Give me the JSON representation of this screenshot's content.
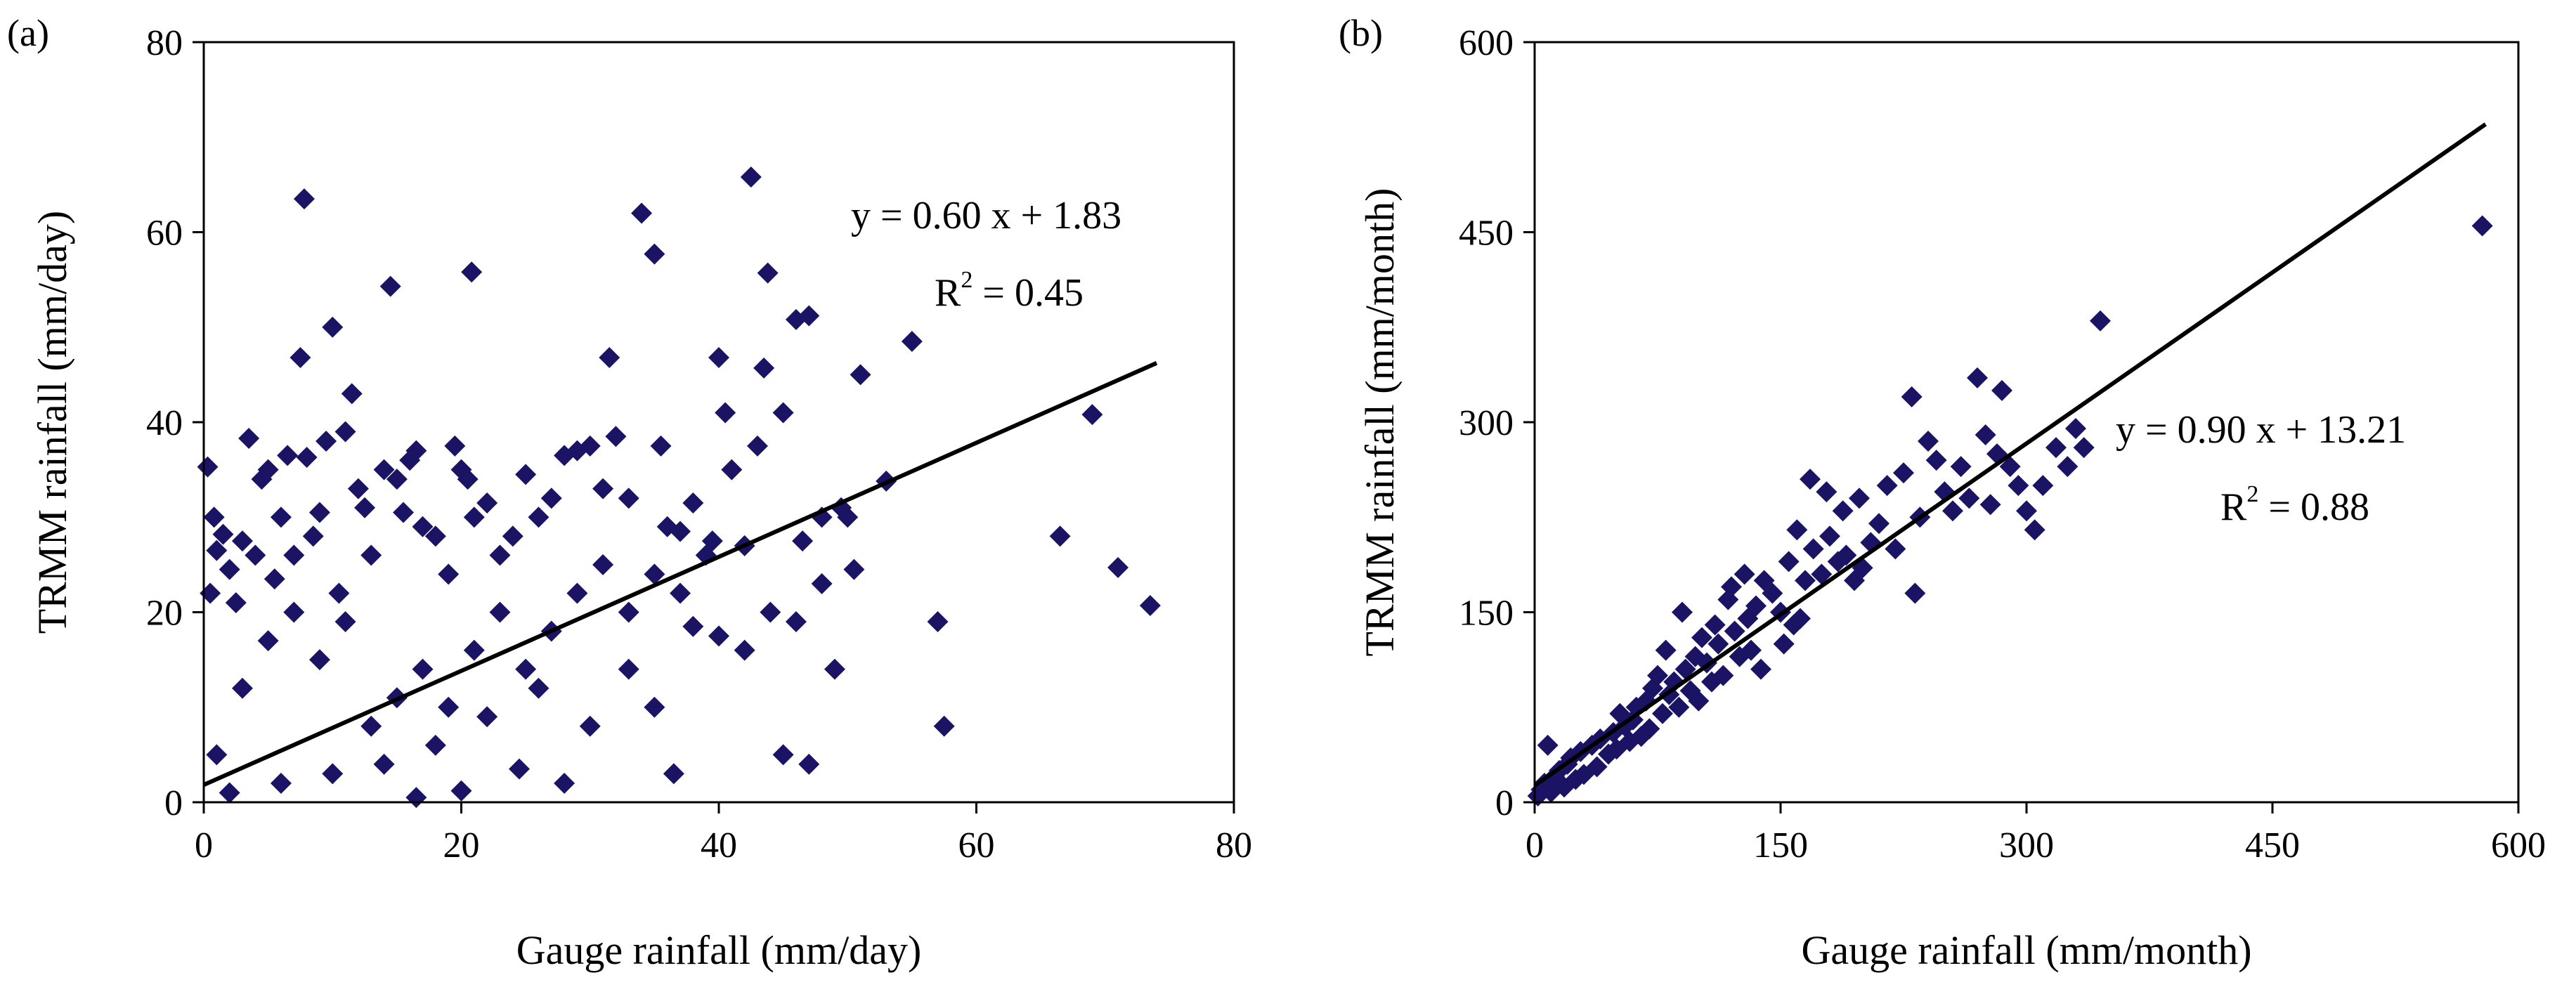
{
  "chart_data": [
    {
      "panel_label": "(a)",
      "type": "scatter",
      "xlabel": "Gauge rainfall (mm/day)",
      "ylabel": "TRMM rainfall (mm/day)",
      "xlim": [
        0,
        80
      ],
      "ylim": [
        0,
        80
      ],
      "xticks": [
        0,
        20,
        40,
        60,
        80
      ],
      "yticks": [
        0,
        20,
        40,
        60,
        80
      ],
      "grid": false,
      "marker": "diamond",
      "marker_color": "#1b1464",
      "line_color": "#000000",
      "fit": {
        "slope": 0.6,
        "intercept": 1.83,
        "x_range": [
          0,
          74
        ]
      },
      "equation_text": "y = 0.60 x + 1.83",
      "r2_text": {
        "prefix": "R",
        "sup": "2",
        "suffix": " = 0.45"
      },
      "points": [
        [
          0.3,
          35.3
        ],
        [
          0.5,
          22.0
        ],
        [
          0.8,
          30.0
        ],
        [
          1.0,
          26.5
        ],
        [
          1.5,
          28.2
        ],
        [
          2.0,
          24.5
        ],
        [
          2.5,
          21.0
        ],
        [
          3.0,
          27.5
        ],
        [
          3.5,
          38.3
        ],
        [
          4.0,
          26.0
        ],
        [
          4.5,
          34.0
        ],
        [
          5.0,
          35.0
        ],
        [
          5.5,
          23.5
        ],
        [
          6.0,
          30.0
        ],
        [
          6.5,
          36.5
        ],
        [
          7.0,
          26.0
        ],
        [
          7.5,
          46.8
        ],
        [
          7.8,
          63.5
        ],
        [
          8.0,
          36.3
        ],
        [
          8.5,
          28.0
        ],
        [
          9.0,
          30.5
        ],
        [
          9.5,
          38.0
        ],
        [
          10.0,
          50.0
        ],
        [
          10.5,
          22.0
        ],
        [
          11.0,
          39.0
        ],
        [
          11.5,
          43.0
        ],
        [
          12.0,
          33.0
        ],
        [
          12.5,
          31.0
        ],
        [
          13.0,
          26.0
        ],
        [
          14.0,
          35.0
        ],
        [
          14.5,
          54.3
        ],
        [
          15.0,
          34.0
        ],
        [
          15.5,
          30.5
        ],
        [
          16.0,
          36.0
        ],
        [
          16.5,
          37.0
        ],
        [
          17.0,
          29.0
        ],
        [
          18.0,
          28.0
        ],
        [
          19.0,
          24.0
        ],
        [
          19.5,
          37.5
        ],
        [
          20.0,
          35.0
        ],
        [
          20.5,
          34.0
        ],
        [
          20.8,
          55.8
        ],
        [
          21.0,
          30.0
        ],
        [
          22.0,
          31.5
        ],
        [
          23.0,
          26.0
        ],
        [
          24.0,
          28.0
        ],
        [
          25.0,
          34.5
        ],
        [
          26.0,
          30.0
        ],
        [
          27.0,
          32.0
        ],
        [
          28.0,
          36.5
        ],
        [
          29.0,
          37.0
        ],
        [
          30.0,
          37.5
        ],
        [
          31.0,
          33.0
        ],
        [
          31.5,
          46.8
        ],
        [
          32.0,
          38.5
        ],
        [
          33.0,
          32.0
        ],
        [
          34.0,
          62.0
        ],
        [
          35.0,
          57.7
        ],
        [
          35.5,
          37.5
        ],
        [
          36.0,
          29.0
        ],
        [
          37.0,
          28.5
        ],
        [
          38.0,
          31.5
        ],
        [
          39.5,
          27.5
        ],
        [
          40.0,
          46.8
        ],
        [
          40.5,
          41.0
        ],
        [
          41.0,
          35.0
        ],
        [
          42.0,
          27.0
        ],
        [
          42.5,
          65.8
        ],
        [
          43.0,
          37.5
        ],
        [
          43.5,
          45.7
        ],
        [
          43.8,
          55.7
        ],
        [
          45.0,
          41.0
        ],
        [
          46.0,
          50.8
        ],
        [
          46.5,
          27.5
        ],
        [
          47.0,
          51.2
        ],
        [
          48.0,
          30.0
        ],
        [
          49.0,
          14.0
        ],
        [
          49.5,
          31.0
        ],
        [
          50.0,
          30.0
        ],
        [
          50.5,
          24.5
        ],
        [
          51.0,
          45.0
        ],
        [
          53.0,
          33.8
        ],
        [
          55.0,
          48.5
        ],
        [
          57.0,
          19.0
        ],
        [
          57.5,
          8.0
        ],
        [
          66.5,
          28.0
        ],
        [
          69.0,
          40.8
        ],
        [
          71.0,
          24.7
        ],
        [
          73.5,
          20.7
        ],
        [
          45.0,
          5.0
        ],
        [
          47.0,
          4.0
        ],
        [
          36.5,
          3.0
        ],
        [
          28.0,
          2.0
        ],
        [
          16.5,
          0.5
        ],
        [
          20.0,
          1.2
        ],
        [
          24.5,
          3.5
        ],
        [
          38.0,
          18.5
        ],
        [
          40.0,
          17.5
        ],
        [
          42.0,
          16.0
        ],
        [
          44.0,
          20.0
        ],
        [
          46.0,
          19.0
        ],
        [
          48.0,
          23.0
        ],
        [
          33.0,
          14.0
        ],
        [
          35.0,
          10.0
        ],
        [
          30.0,
          8.0
        ],
        [
          26.0,
          12.0
        ],
        [
          22.0,
          9.0
        ],
        [
          18.0,
          6.0
        ],
        [
          14.0,
          4.0
        ],
        [
          10.0,
          3.0
        ],
        [
          6.0,
          2.0
        ],
        [
          2.0,
          1.0
        ],
        [
          1.0,
          5.0
        ],
        [
          3.0,
          12.0
        ],
        [
          5.0,
          17.0
        ],
        [
          7.0,
          20.0
        ],
        [
          9.0,
          15.0
        ],
        [
          11.0,
          19.0
        ],
        [
          13.0,
          8.0
        ],
        [
          15.0,
          11.0
        ],
        [
          17.0,
          14.0
        ],
        [
          19.0,
          10.0
        ],
        [
          21.0,
          16.0
        ],
        [
          23.0,
          20.0
        ],
        [
          25.0,
          14.0
        ],
        [
          27.0,
          18.0
        ],
        [
          29.0,
          22.0
        ],
        [
          31.0,
          25.0
        ],
        [
          33.0,
          20.0
        ],
        [
          35.0,
          24.0
        ],
        [
          37.0,
          22.0
        ],
        [
          39.0,
          26.0
        ]
      ]
    },
    {
      "panel_label": "(b)",
      "type": "scatter",
      "xlabel": "Gauge rainfall (mm/month)",
      "ylabel": "TRMM rainfall (mm/month)",
      "xlim": [
        0,
        600
      ],
      "ylim": [
        0,
        600
      ],
      "xticks": [
        0,
        150,
        300,
        450,
        600
      ],
      "yticks": [
        0,
        150,
        300,
        450,
        600
      ],
      "grid": false,
      "marker": "diamond",
      "marker_color": "#1b1464",
      "line_color": "#000000",
      "fit": {
        "slope": 0.9,
        "intercept": 13.21,
        "x_range": [
          0,
          580
        ]
      },
      "equation_text": "y = 0.90 x + 13.21",
      "r2_text": {
        "prefix": "R",
        "sup": "2",
        "suffix": " = 0.88"
      },
      "points": [
        [
          2,
          5
        ],
        [
          4,
          10
        ],
        [
          6,
          15
        ],
        [
          8,
          45
        ],
        [
          10,
          8
        ],
        [
          12,
          20
        ],
        [
          15,
          25
        ],
        [
          18,
          12
        ],
        [
          20,
          30
        ],
        [
          22,
          35
        ],
        [
          25,
          18
        ],
        [
          28,
          40
        ],
        [
          30,
          22
        ],
        [
          35,
          45
        ],
        [
          38,
          28
        ],
        [
          40,
          50
        ],
        [
          45,
          38
        ],
        [
          48,
          55
        ],
        [
          50,
          42
        ],
        [
          52,
          70
        ],
        [
          55,
          60
        ],
        [
          58,
          48
        ],
        [
          60,
          65
        ],
        [
          62,
          75
        ],
        [
          65,
          52
        ],
        [
          68,
          80
        ],
        [
          70,
          58
        ],
        [
          72,
          90
        ],
        [
          75,
          100
        ],
        [
          78,
          70
        ],
        [
          80,
          120
        ],
        [
          82,
          85
        ],
        [
          85,
          95
        ],
        [
          88,
          75
        ],
        [
          90,
          150
        ],
        [
          92,
          105
        ],
        [
          95,
          88
        ],
        [
          98,
          115
        ],
        [
          100,
          80
        ],
        [
          102,
          130
        ],
        [
          105,
          110
        ],
        [
          108,
          95
        ],
        [
          110,
          140
        ],
        [
          112,
          125
        ],
        [
          115,
          100
        ],
        [
          118,
          160
        ],
        [
          120,
          170
        ],
        [
          122,
          135
        ],
        [
          125,
          115
        ],
        [
          128,
          180
        ],
        [
          130,
          145
        ],
        [
          132,
          120
        ],
        [
          135,
          155
        ],
        [
          138,
          105
        ],
        [
          140,
          175
        ],
        [
          145,
          165
        ],
        [
          150,
          150
        ],
        [
          152,
          125
        ],
        [
          155,
          190
        ],
        [
          158,
          140
        ],
        [
          160,
          215
        ],
        [
          162,
          145
        ],
        [
          165,
          175
        ],
        [
          168,
          255
        ],
        [
          170,
          200
        ],
        [
          175,
          180
        ],
        [
          178,
          245
        ],
        [
          180,
          210
        ],
        [
          185,
          190
        ],
        [
          188,
          230
        ],
        [
          190,
          195
        ],
        [
          195,
          175
        ],
        [
          198,
          240
        ],
        [
          200,
          185
        ],
        [
          205,
          205
        ],
        [
          210,
          220
        ],
        [
          215,
          250
        ],
        [
          220,
          200
        ],
        [
          225,
          260
        ],
        [
          230,
          320
        ],
        [
          232,
          165
        ],
        [
          235,
          225
        ],
        [
          240,
          285
        ],
        [
          245,
          270
        ],
        [
          250,
          245
        ],
        [
          255,
          230
        ],
        [
          260,
          265
        ],
        [
          265,
          240
        ],
        [
          270,
          335
        ],
        [
          275,
          290
        ],
        [
          278,
          235
        ],
        [
          282,
          275
        ],
        [
          285,
          325
        ],
        [
          290,
          265
        ],
        [
          295,
          250
        ],
        [
          300,
          230
        ],
        [
          305,
          215
        ],
        [
          310,
          250
        ],
        [
          318,
          280
        ],
        [
          325,
          265
        ],
        [
          330,
          295
        ],
        [
          335,
          280
        ],
        [
          345,
          380
        ],
        [
          578,
          455
        ]
      ]
    }
  ]
}
